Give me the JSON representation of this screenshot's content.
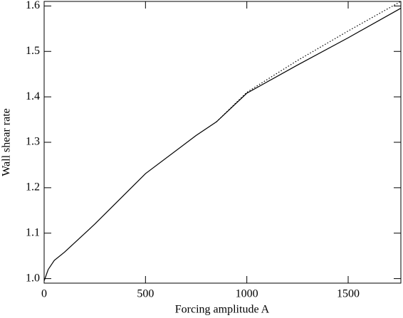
{
  "chart_data": {
    "type": "line",
    "x_label": "Forcing amplitude A",
    "y_label": "Wall shear rate",
    "x": [
      0,
      20,
      50,
      100,
      250,
      500,
      750,
      850,
      1000,
      1250,
      1500,
      1760
    ],
    "series": [
      {
        "color": "#000000",
        "style": "solid",
        "values": [
          0.995,
          1.02,
          1.04,
          1.058,
          1.12,
          1.231,
          1.315,
          1.345,
          1.408,
          1.47,
          1.53,
          1.595
        ]
      },
      {
        "color": "#000000",
        "style": "dotted",
        "values": [
          null,
          null,
          null,
          null,
          null,
          null,
          null,
          1.345,
          1.41,
          1.48,
          1.545,
          1.61
        ]
      }
    ],
    "xlim": [
      0,
      1760
    ],
    "ylim": [
      0.99,
      1.61
    ],
    "xticks": [
      0,
      500,
      1000,
      1500
    ],
    "yticks": [
      {
        "value": 1.0,
        "label": "1.0"
      },
      1.1,
      1.2,
      1.3,
      1.4,
      1.5,
      1.6
    ]
  }
}
